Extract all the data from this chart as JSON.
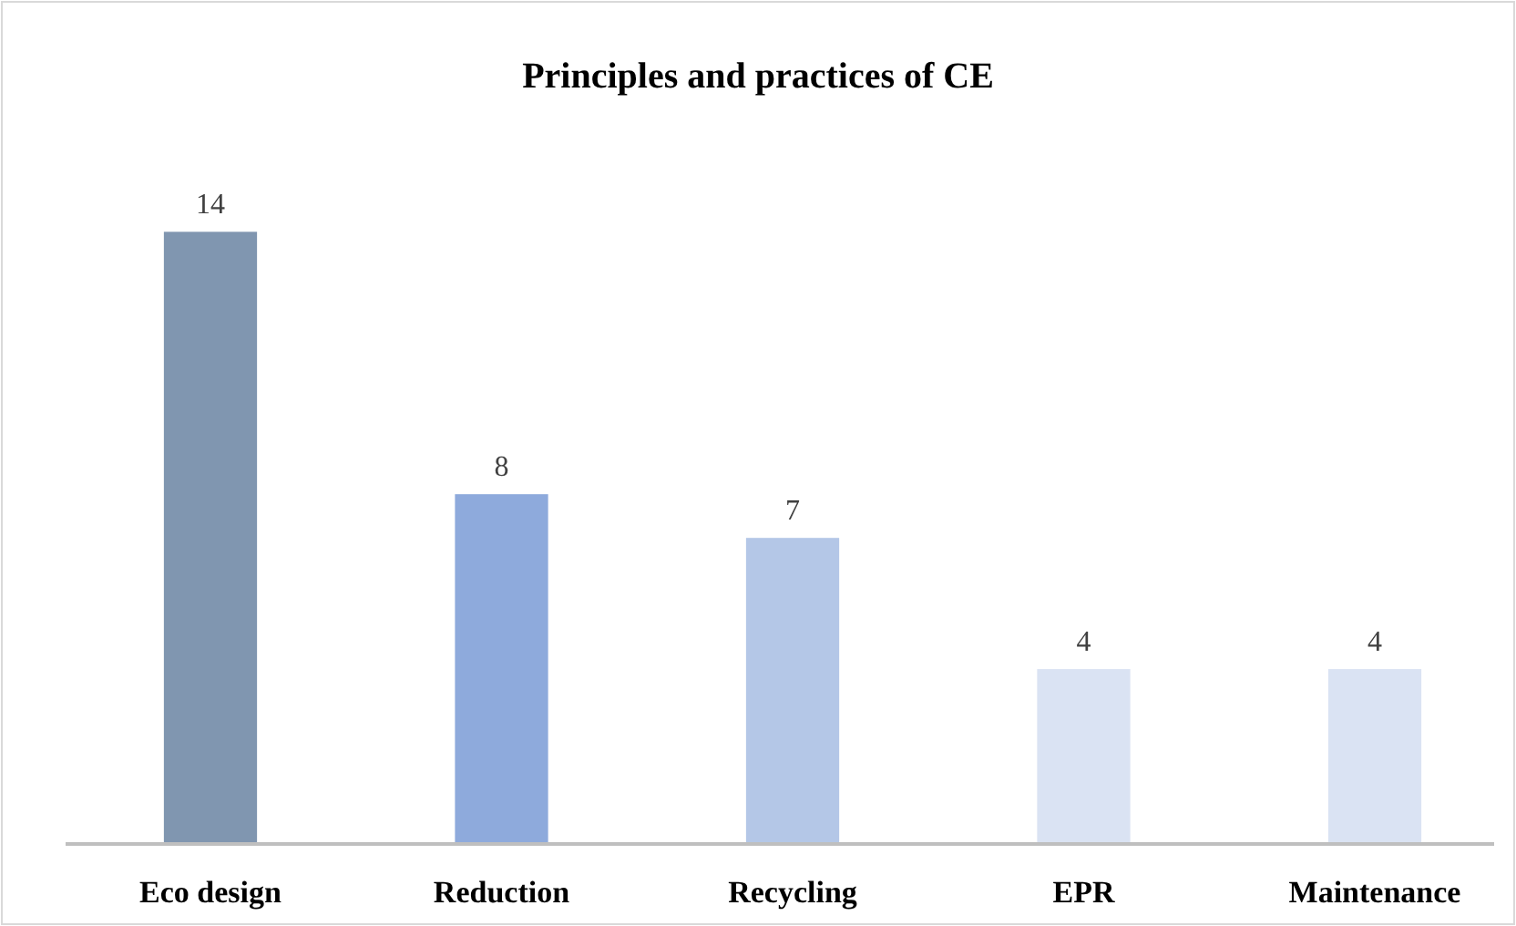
{
  "chart_data": {
    "type": "bar",
    "title": "Principles and practices of CE",
    "categories": [
      "Eco design",
      "Reduction",
      "Recycling",
      "EPR",
      "Maintenance"
    ],
    "values": [
      14,
      8,
      7,
      4,
      4
    ],
    "colors": [
      "#8096b0",
      "#8eaadc",
      "#b4c7e7",
      "#dae3f3",
      "#dae3f3"
    ],
    "data_labels": true,
    "grid": false
  }
}
